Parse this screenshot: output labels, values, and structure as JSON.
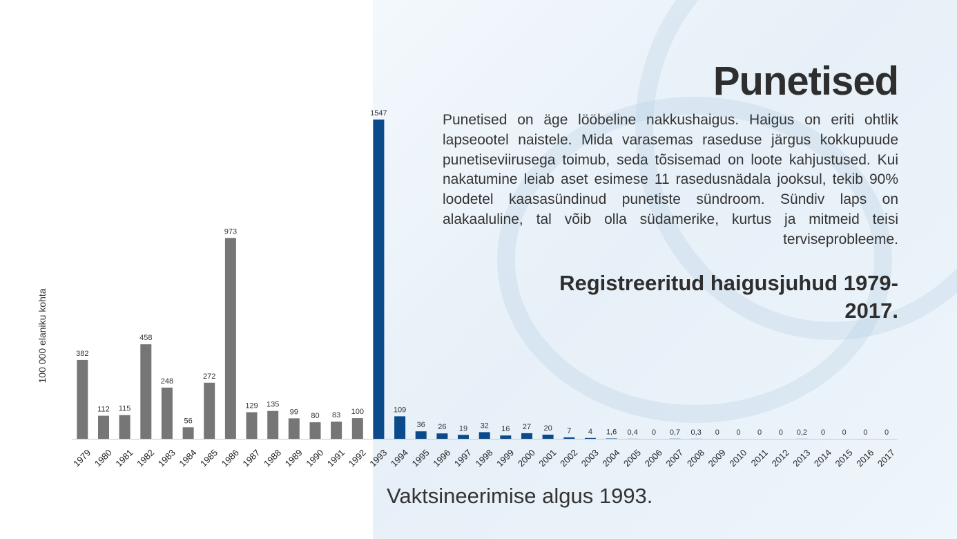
{
  "title": "Punetised",
  "description": "Punetised on äge lööbeline nakkushaigus. Haigus on eriti ohtlik lapseootel naistele. Mida varasemas raseduse järgus kokkupuude punetiseviirusega toimub, seda tõsisemad on loote kahjustused. Kui nakatumine leiab aset esimese 11 rasedusnädala jooksul, tekib 90% loodetel kaasasündinud punetiste sündroom. Sündiv laps on alakaaluline, tal võib olla südamerike, kurtus ja mitmeid teisi terviseprobleeme.",
  "subtitle": "Registreeritud haigusjuhud 1979-2017.",
  "note": "Vaktsineerimise algus 1993.",
  "chart_data": {
    "type": "bar",
    "ylabel": "100 000 elaniku kohta",
    "categories": [
      "1979",
      "1980",
      "1981",
      "1982",
      "1983",
      "1984",
      "1985",
      "1986",
      "1987",
      "1988",
      "1989",
      "1990",
      "1991",
      "1992",
      "1993",
      "1994",
      "1995",
      "1996",
      "1997",
      "1998",
      "1999",
      "2000",
      "2001",
      "2002",
      "2003",
      "2004",
      "2005",
      "2006",
      "2007",
      "2008",
      "2009",
      "2010",
      "2011",
      "2012",
      "2013",
      "2014",
      "2015",
      "2016",
      "2017"
    ],
    "values": [
      382,
      112,
      115,
      458,
      248,
      56,
      272,
      973,
      129,
      135,
      99,
      80,
      83,
      100,
      1547,
      109,
      36,
      26,
      19,
      32,
      16,
      27,
      20,
      7,
      4,
      1.6,
      0.4,
      0,
      0.7,
      0.3,
      0,
      0,
      0,
      0,
      0.2,
      0,
      0,
      0,
      0
    ],
    "value_labels": [
      "382",
      "112",
      "115",
      "458",
      "248",
      "56",
      "272",
      "973",
      "129",
      "135",
      "99",
      "80",
      "83",
      "100",
      "1547",
      "109",
      "36",
      "26",
      "19",
      "32",
      "16",
      "27",
      "20",
      "7",
      "4",
      "1,6",
      "0,4",
      "0",
      "0,7",
      "0,3",
      "0",
      "0",
      "0",
      "0",
      "0,2",
      "0",
      "0",
      "0",
      "0"
    ],
    "ylim": [
      0,
      1547
    ],
    "grid": false,
    "colors": {
      "pre_vaccination": "#767676",
      "post_vaccination": "#0b4a8b"
    },
    "vaccination_start_year": "1993"
  }
}
